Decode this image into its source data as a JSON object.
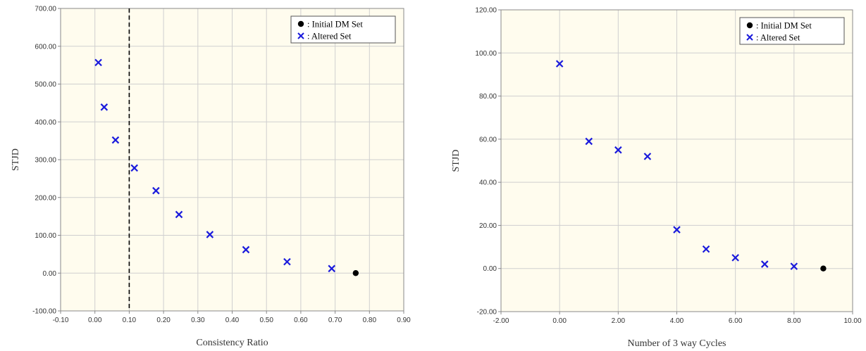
{
  "colors": {
    "plot_bg": "#fffcee",
    "grid": "#cfcfcf",
    "axis": "#888888",
    "initial_marker": "#000000",
    "altered_marker": "#1a1adc"
  },
  "chart_data": [
    {
      "type": "scatter",
      "title": "",
      "xlabel": "Consistency Ratio",
      "ylabel": "STJD",
      "xlim": [
        -0.1,
        0.9
      ],
      "ylim": [
        -100,
        700
      ],
      "x_ticks": [
        -0.1,
        0.0,
        0.1,
        0.2,
        0.3,
        0.4,
        0.5,
        0.6,
        0.7,
        0.8,
        0.9
      ],
      "x_tick_labels": [
        "-0.10",
        "0.00",
        "0.10",
        "0.20",
        "0.30",
        "0.40",
        "0.50",
        "0.60",
        "0.70",
        "0.80",
        "0.90"
      ],
      "y_ticks": [
        -100,
        0,
        100,
        200,
        300,
        400,
        500,
        600,
        700
      ],
      "y_tick_labels": [
        "-100.00",
        "0.00",
        "100.00",
        "200.00",
        "300.00",
        "400.00",
        "500.00",
        "600.00",
        "700.00"
      ],
      "grid": true,
      "vertical_reference_line": 0.1,
      "legend_position": "top-right",
      "legend": [
        {
          "marker": "dot",
          "label": ": Initial  DM Set"
        },
        {
          "marker": "cross",
          "label": ": Altered  Set"
        }
      ],
      "series": [
        {
          "marker": "dot",
          "points": [
            [
              0.76,
              0
            ]
          ]
        },
        {
          "marker": "cross",
          "points": [
            [
              0.01,
              557
            ],
            [
              0.027,
              439
            ],
            [
              0.06,
              352
            ],
            [
              0.115,
              278
            ],
            [
              0.178,
              218
            ],
            [
              0.245,
              155
            ],
            [
              0.335,
              102
            ],
            [
              0.44,
              62
            ],
            [
              0.56,
              30
            ],
            [
              0.69,
              12
            ]
          ]
        }
      ]
    },
    {
      "type": "scatter",
      "title": "",
      "xlabel": "Number of 3 way Cycles",
      "ylabel": "STJD",
      "xlim": [
        -2,
        10
      ],
      "ylim": [
        -20,
        120
      ],
      "x_ticks": [
        -2,
        0,
        2,
        4,
        6,
        8,
        10
      ],
      "x_tick_labels": [
        "-2.00",
        "0.00",
        "2.00",
        "4.00",
        "6.00",
        "8.00",
        "10.00"
      ],
      "y_ticks": [
        -20,
        0,
        20,
        40,
        60,
        80,
        100,
        120
      ],
      "y_tick_labels": [
        "-20.00",
        "0.00",
        "20.00",
        "40.00",
        "60.00",
        "80.00",
        "100.00",
        "120.00"
      ],
      "grid": true,
      "legend_position": "top-right",
      "legend": [
        {
          "marker": "dot",
          "label": ": Initial  DM Set"
        },
        {
          "marker": "cross",
          "label": ": Altered  Set"
        }
      ],
      "series": [
        {
          "marker": "dot",
          "points": [
            [
              9,
              0
            ]
          ]
        },
        {
          "marker": "cross",
          "points": [
            [
              0,
              95
            ],
            [
              1,
              59
            ],
            [
              2,
              55
            ],
            [
              3,
              52
            ],
            [
              4,
              18
            ],
            [
              5,
              9
            ],
            [
              6,
              5
            ],
            [
              7,
              2
            ],
            [
              8,
              1
            ]
          ]
        }
      ]
    }
  ]
}
